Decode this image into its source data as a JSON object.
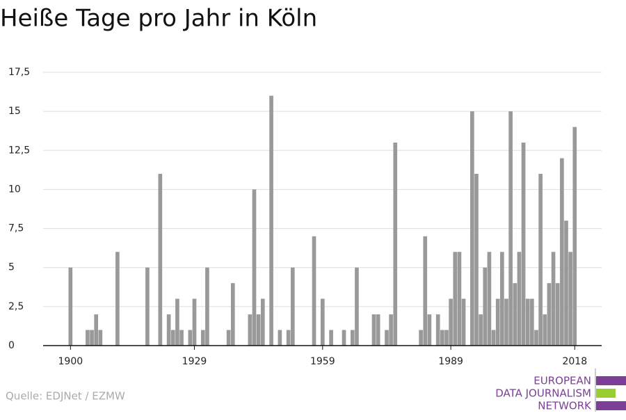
{
  "chart_data": {
    "type": "bar",
    "title": "Heiße Tage pro Jahr in Köln",
    "x": [
      1900,
      1901,
      1902,
      1903,
      1904,
      1905,
      1906,
      1907,
      1908,
      1909,
      1910,
      1911,
      1912,
      1913,
      1914,
      1915,
      1916,
      1917,
      1918,
      1919,
      1920,
      1921,
      1922,
      1923,
      1924,
      1925,
      1926,
      1927,
      1928,
      1929,
      1930,
      1931,
      1932,
      1933,
      1934,
      1935,
      1936,
      1937,
      1938,
      1939,
      1940,
      1941,
      1942,
      1943,
      1944,
      1945,
      1946,
      1947,
      1948,
      1949,
      1950,
      1951,
      1952,
      1953,
      1954,
      1955,
      1956,
      1957,
      1958,
      1959,
      1960,
      1961,
      1962,
      1963,
      1964,
      1965,
      1966,
      1967,
      1968,
      1969,
      1970,
      1971,
      1972,
      1973,
      1974,
      1975,
      1976,
      1977,
      1978,
      1979,
      1980,
      1981,
      1982,
      1983,
      1984,
      1985,
      1986,
      1987,
      1988,
      1989,
      1990,
      1991,
      1992,
      1993,
      1994,
      1995,
      1996,
      1997,
      1998,
      1999,
      2000,
      2001,
      2002,
      2003,
      2004,
      2005,
      2006,
      2007,
      2008,
      2009,
      2010,
      2011,
      2012,
      2013,
      2014,
      2015,
      2016,
      2017,
      2018
    ],
    "values": [
      5,
      0,
      0,
      0,
      1,
      1,
      2,
      1,
      0,
      0,
      0,
      6,
      0,
      0,
      0,
      0,
      0,
      0,
      5,
      0,
      0,
      11,
      0,
      2,
      1,
      3,
      1,
      0,
      1,
      3,
      0,
      1,
      5,
      0,
      0,
      0,
      0,
      1,
      4,
      0,
      0,
      0,
      2,
      10,
      2,
      3,
      0,
      16,
      0,
      1,
      0,
      1,
      5,
      0,
      0,
      0,
      0,
      7,
      0,
      3,
      0,
      1,
      0,
      0,
      1,
      0,
      1,
      5,
      0,
      0,
      0,
      2,
      2,
      0,
      1,
      2,
      13,
      0,
      0,
      0,
      0,
      0,
      1,
      7,
      2,
      0,
      2,
      1,
      1,
      3,
      6,
      6,
      3,
      0,
      15,
      11,
      2,
      5,
      6,
      1,
      3,
      6,
      3,
      15,
      4,
      6,
      13,
      3,
      3,
      1,
      11,
      2,
      4,
      6,
      4,
      12,
      8,
      6,
      14
    ],
    "color": "#999999",
    "xlim": [
      1893.6,
      2024.3
    ],
    "xticks": [
      1900,
      1929,
      1959,
      1989,
      2018
    ],
    "ylim": [
      0,
      17.5
    ],
    "yticks": [
      0,
      {
        "value": 2.5,
        "label": "2,5"
      },
      5,
      {
        "value": 7.5,
        "label": "7,5"
      },
      10,
      {
        "value": 12.5,
        "label": "12,5"
      },
      15,
      {
        "value": 17.5,
        "label": "17,5"
      }
    ],
    "grid": true
  },
  "source": "Quelle: EDJNet / EZMW",
  "logo": {
    "lines": [
      "EUROPEAN",
      "DATA JOURNALISM",
      "NETWORK"
    ]
  }
}
